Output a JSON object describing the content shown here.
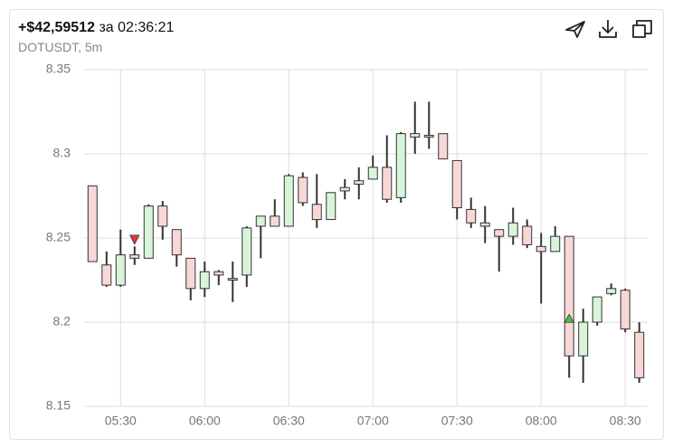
{
  "chart_data": {
    "type": "candlestick",
    "title": "+$42,59512",
    "title_suffix": "за 02:36:21",
    "subtitle": "DOTUSDT, 5m",
    "x": [
      "05:20",
      "05:25",
      "05:30",
      "05:35",
      "05:40",
      "05:45",
      "05:50",
      "05:55",
      "06:00",
      "06:05",
      "06:10",
      "06:15",
      "06:20",
      "06:25",
      "06:30",
      "06:35",
      "06:40",
      "06:45",
      "06:50",
      "06:55",
      "07:00",
      "07:05",
      "07:10",
      "07:15",
      "07:20",
      "07:25",
      "07:30",
      "07:35",
      "07:40",
      "07:45",
      "07:50",
      "07:55",
      "08:00",
      "08:05",
      "08:10",
      "08:15",
      "08:20",
      "08:25",
      "08:30",
      "08:35"
    ],
    "open": [
      8.281,
      8.234,
      8.222,
      8.24,
      8.238,
      8.269,
      8.255,
      8.238,
      8.22,
      8.23,
      8.226,
      8.228,
      8.257,
      8.263,
      8.257,
      8.286,
      8.27,
      8.261,
      8.278,
      8.282,
      8.285,
      8.292,
      8.274,
      8.31,
      8.311,
      8.312,
      8.296,
      8.267,
      8.259,
      8.255,
      8.251,
      8.257,
      8.245,
      8.242,
      8.251,
      8.18,
      8.2,
      8.217,
      8.219,
      8.194
    ],
    "high": [
      8.281,
      8.242,
      8.255,
      8.245,
      8.27,
      8.272,
      8.255,
      8.238,
      8.236,
      8.231,
      8.236,
      8.257,
      8.263,
      8.273,
      8.288,
      8.289,
      8.288,
      8.277,
      8.285,
      8.292,
      8.299,
      8.311,
      8.313,
      8.331,
      8.331,
      8.312,
      8.296,
      8.274,
      8.269,
      8.255,
      8.268,
      8.261,
      8.253,
      8.257,
      8.251,
      8.208,
      8.215,
      8.223,
      8.22,
      8.2
    ],
    "low": [
      8.236,
      8.221,
      8.221,
      8.234,
      8.238,
      8.249,
      8.233,
      8.213,
      8.215,
      8.222,
      8.212,
      8.221,
      8.238,
      8.257,
      8.257,
      8.269,
      8.256,
      8.261,
      8.273,
      8.273,
      8.285,
      8.271,
      8.271,
      8.3,
      8.303,
      8.297,
      8.261,
      8.256,
      8.247,
      8.23,
      8.246,
      8.244,
      8.211,
      8.242,
      8.167,
      8.164,
      8.198,
      8.216,
      8.194,
      8.164
    ],
    "close": [
      8.236,
      8.222,
      8.24,
      8.238,
      8.269,
      8.257,
      8.24,
      8.22,
      8.23,
      8.228,
      8.225,
      8.256,
      8.263,
      8.257,
      8.287,
      8.271,
      8.261,
      8.277,
      8.28,
      8.284,
      8.292,
      8.273,
      8.312,
      8.312,
      8.31,
      8.297,
      8.268,
      8.259,
      8.257,
      8.251,
      8.259,
      8.246,
      8.242,
      8.251,
      8.18,
      8.2,
      8.215,
      8.22,
      8.196,
      8.167
    ],
    "up_color": "#d8f5d9",
    "down_color": "#f8d7d7",
    "markers": [
      {
        "x": "05:35",
        "value": 8.249,
        "side": "sell",
        "color": "#e53935"
      },
      {
        "x": "08:10",
        "value": 8.202,
        "side": "buy",
        "color": "#43c443"
      }
    ],
    "xlim": [
      "05:17",
      "08:38"
    ],
    "xticks": [
      "05:30",
      "06:00",
      "06:30",
      "07:00",
      "07:30",
      "08:00",
      "08:30"
    ],
    "ylim": [
      8.15,
      8.35
    ],
    "yticks": [
      8.15,
      8.2,
      8.25,
      8.3,
      8.35
    ],
    "grid": true
  }
}
